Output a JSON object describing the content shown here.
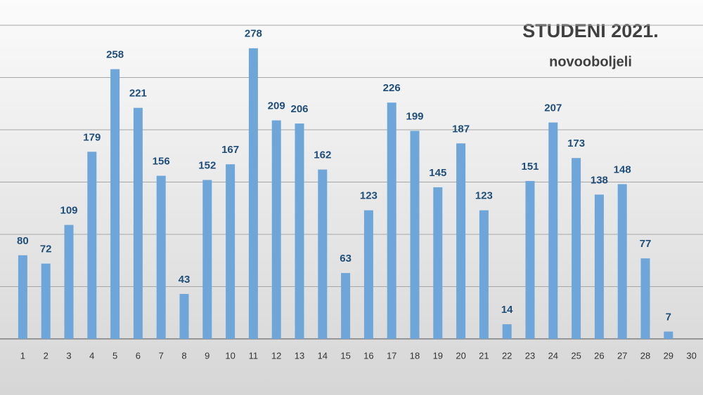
{
  "chart_data": {
    "type": "bar",
    "title": "STUDENI 2021.",
    "subtitle": "novooboljeli",
    "categories": [
      "1",
      "2",
      "3",
      "4",
      "5",
      "6",
      "7",
      "8",
      "9",
      "10",
      "11",
      "12",
      "13",
      "14",
      "15",
      "16",
      "17",
      "18",
      "19",
      "20",
      "21",
      "22",
      "23",
      "24",
      "25",
      "26",
      "27",
      "28",
      "29",
      "30"
    ],
    "values": [
      80,
      72,
      109,
      179,
      258,
      221,
      156,
      43,
      152,
      167,
      278,
      209,
      206,
      162,
      63,
      123,
      226,
      199,
      145,
      187,
      123,
      14,
      151,
      207,
      173,
      138,
      148,
      77,
      7,
      null
    ],
    "color": "#6fa6d9",
    "ylim": [
      0,
      300
    ],
    "yticks": [
      0,
      50,
      100,
      150,
      200,
      250,
      300
    ],
    "grid": true
  }
}
